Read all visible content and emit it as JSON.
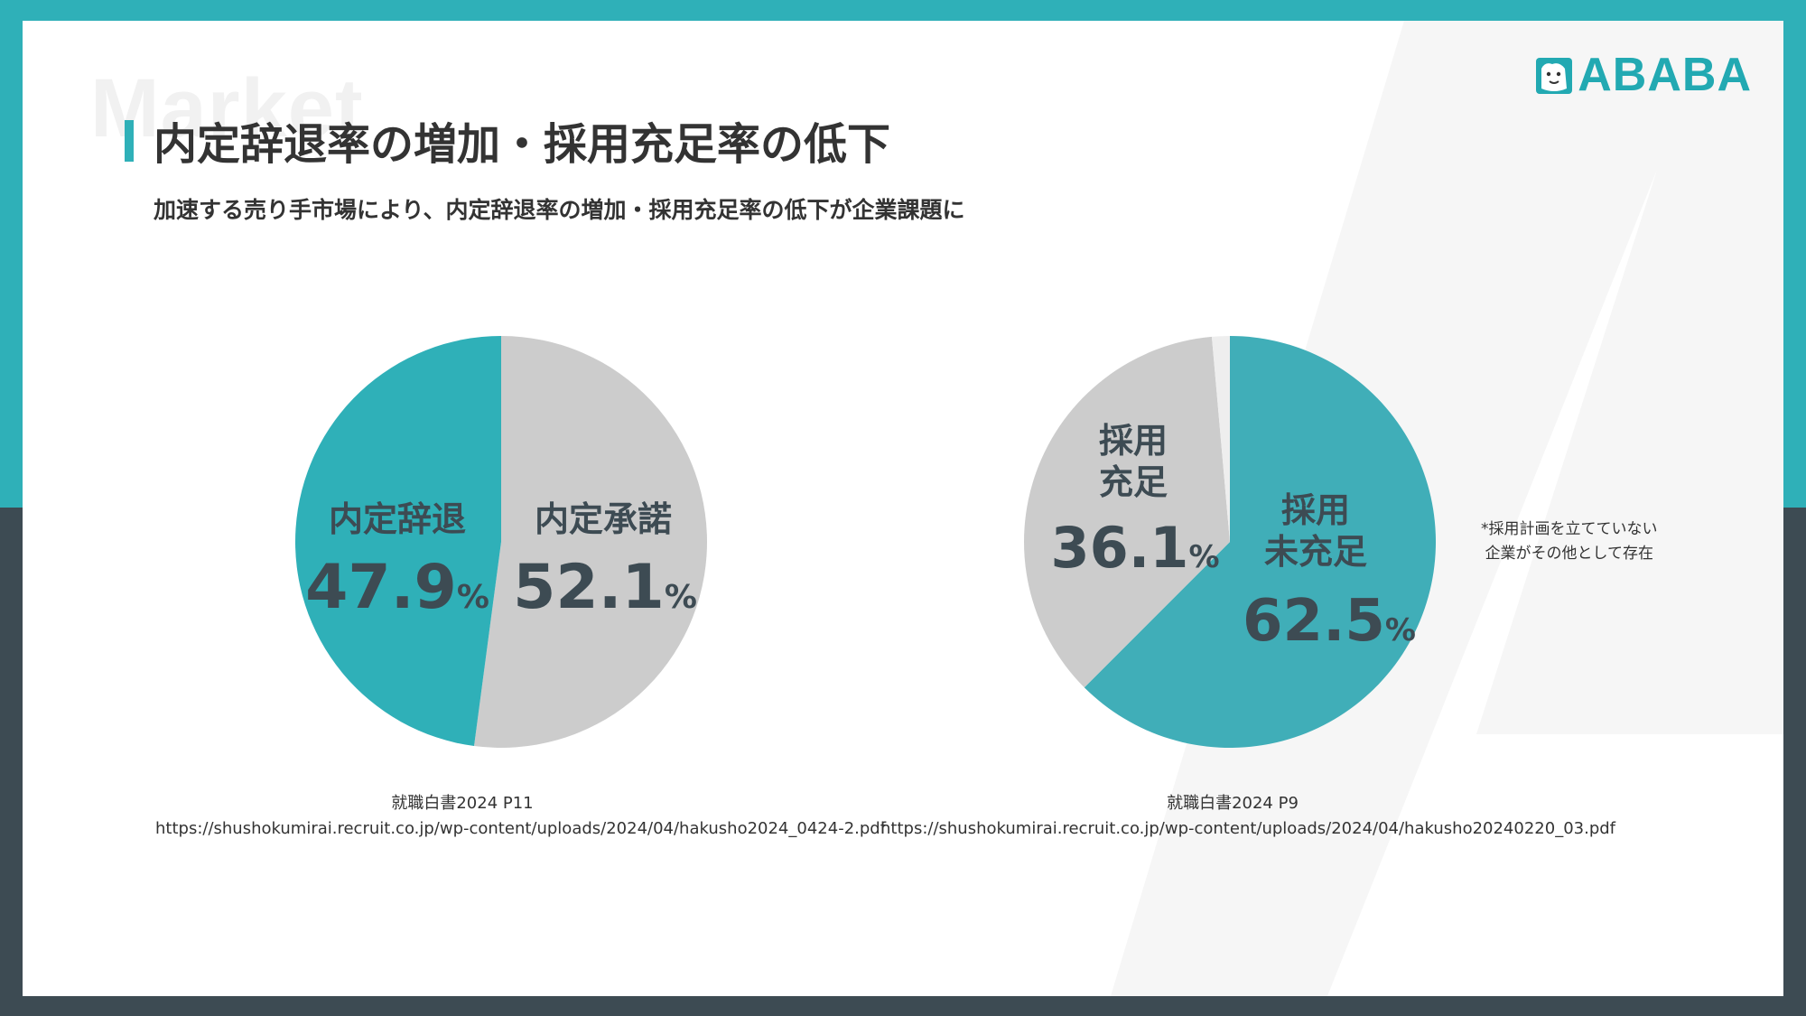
{
  "watermark": "Market",
  "logo": {
    "text": "ABABA",
    "color": "#22a9b2"
  },
  "title": "内定辞退率の増加・採用充足率の低下",
  "subtitle": "加速する売り手市場により、内定辞退率の増加・採用充足率の低下が企業課題に",
  "colors": {
    "teal": "#2fb0b8",
    "teal2": "#40aeb8",
    "gray": "#cccccc",
    "other": "#eeeeee",
    "dark": "#3d4b53",
    "text": "#333333"
  },
  "chart_data": [
    {
      "type": "pie",
      "title": "",
      "slices": [
        {
          "label": "内定辞退",
          "value": 47.9,
          "value_text": "47.9",
          "unit": "%",
          "color": "#2fb0b8"
        },
        {
          "label": "内定承諾",
          "value": 52.1,
          "value_text": "52.1",
          "unit": "%",
          "color": "#cccccc"
        }
      ],
      "source": {
        "line1": "就職白書2024 P11",
        "line2": "https://shushokumirai.recruit.co.jp/wp-content/uploads/2024/04/hakusho2024_0424-2.pdf"
      }
    },
    {
      "type": "pie",
      "title": "",
      "slices": [
        {
          "label": "採用 未充足",
          "value": 62.5,
          "value_text": "62.5",
          "unit": "%",
          "color": "#40aeb8"
        },
        {
          "label": "採用 充足",
          "value": 36.1,
          "value_text": "36.1",
          "unit": "%",
          "color": "#cccccc"
        },
        {
          "label": "その他",
          "value": 1.4,
          "value_text": "",
          "unit": "",
          "color": "#eeeeee"
        }
      ],
      "note": {
        "line1": "*採用計画を立てていない",
        "line2": "企業がその他として存在"
      },
      "source": {
        "line1": "就職白書2024 P9",
        "line2": "https://shushokumirai.recruit.co.jp/wp-content/uploads/2024/04/hakusho20240220_03.pdf"
      }
    }
  ]
}
